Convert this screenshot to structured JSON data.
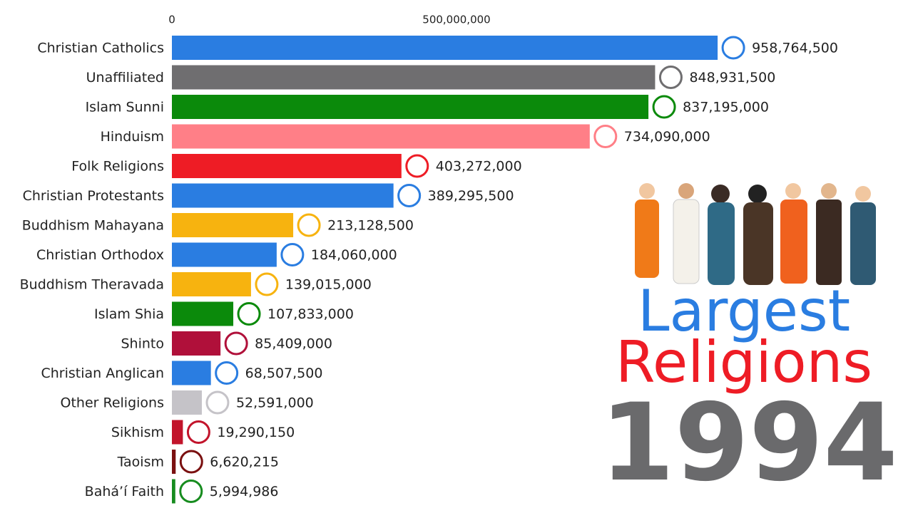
{
  "chart_data": {
    "type": "bar",
    "orientation": "horizontal",
    "title_lines": [
      "Largest",
      "Religions"
    ],
    "title_colors": [
      "#2a7de1",
      "#ee1c25"
    ],
    "year": "1994",
    "year_color": "#6a6a6c",
    "categories": [
      "Christian Catholics",
      "Unaffiliated",
      "Islam Sunni",
      "Hinduism",
      "Folk Religions",
      "Christian Protestants",
      "Buddhism Mahayana",
      "Christian Orthodox",
      "Buddhism Theravada",
      "Islam Shia",
      "Shinto",
      "Christian Anglican",
      "Other Religions",
      "Sikhism",
      "Taoism",
      "Bahá’í Faith"
    ],
    "values": [
      958764500,
      848931500,
      837195000,
      734090000,
      403272000,
      389295500,
      213128500,
      184060000,
      139015000,
      107833000,
      85409000,
      68507500,
      52591000,
      19290150,
      6620215,
      5994986
    ],
    "value_labels": [
      "958,764,500",
      "848,931,500",
      "837,195,000",
      "734,090,000",
      "403,272,000",
      "389,295,500",
      "213,128,500",
      "184,060,000",
      "139,015,000",
      "107,833,000",
      "85,409,000",
      "68,507,500",
      "52,591,000",
      "19,290,150",
      "6,620,215",
      "5,994,986"
    ],
    "colors": [
      "#2a7de1",
      "#6f6e70",
      "#0b8a0b",
      "#ff7f87",
      "#ee1c25",
      "#2a7de1",
      "#f7b30f",
      "#2a7de1",
      "#f7b30f",
      "#0b8a0b",
      "#b0103a",
      "#2a7de1",
      "#c5c3c8",
      "#c2142b",
      "#7a1010",
      "#178c1f"
    ],
    "xlim": [
      0,
      1000000000
    ],
    "xticks": [
      0,
      {
        "value": 500000000,
        "label": "500,000,000"
      }
    ],
    "grid": false
  }
}
